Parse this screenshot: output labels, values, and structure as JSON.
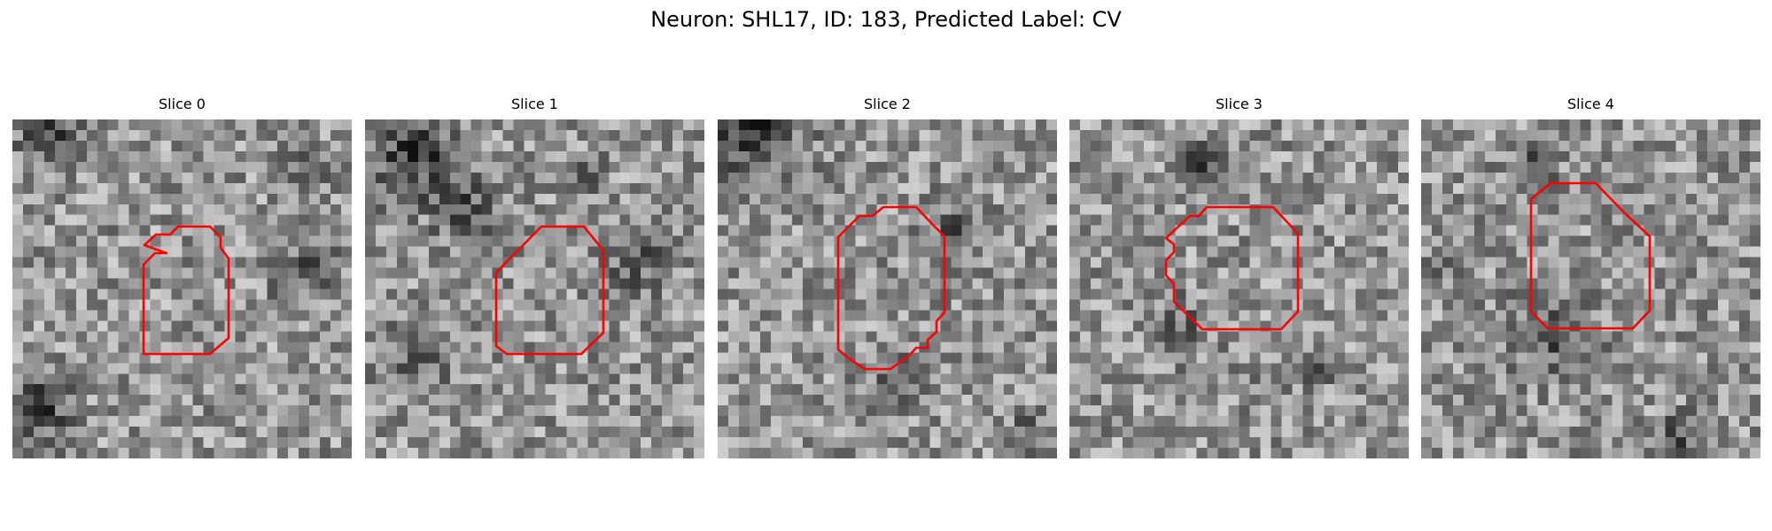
{
  "figure": {
    "title": "Neuron: SHL17, ID: 183, Predicted Label: CV"
  },
  "colors": {
    "outline": "#ff0000",
    "background": "#ffffff"
  },
  "grid_cells": 32,
  "slices": [
    {
      "title": "Slice 0",
      "seed": 11
    },
    {
      "title": "Slice 1",
      "seed": 23
    },
    {
      "title": "Slice 2",
      "seed": 37
    },
    {
      "title": "Slice 3",
      "seed": 41
    },
    {
      "title": "Slice 4",
      "seed": 59
    }
  ]
}
